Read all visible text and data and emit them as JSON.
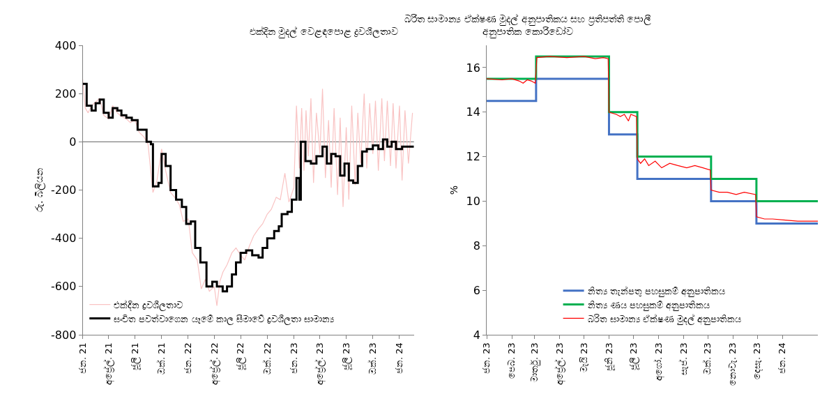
{
  "chart_data": [
    {
      "type": "line",
      "title": "එක්දින මුදල් වෙළඳපොළ ද්‍රවශීලතාව",
      "ylabel": "රු. බිලියන",
      "xlim": [
        "2021-01-01",
        "2024-02-20"
      ],
      "xticks": [
        {
          "value": "2021-01-01",
          "label": "ජන. 21"
        },
        {
          "value": "2021-04-01",
          "label": "අප්‍රේල්. 21"
        },
        {
          "value": "2021-07-01",
          "label": "ජූලි 21"
        },
        {
          "value": "2021-10-01",
          "label": "ඔක්. 21"
        },
        {
          "value": "2022-01-01",
          "label": "ජන. 22"
        },
        {
          "value": "2022-04-01",
          "label": "අප්‍රේල්. 22"
        },
        {
          "value": "2022-07-01",
          "label": "ජූලි 22"
        },
        {
          "value": "2022-10-01",
          "label": "ඔක්. 22"
        },
        {
          "value": "2023-01-01",
          "label": "ජන. 23"
        },
        {
          "value": "2023-04-01",
          "label": "අප්‍රේල්. 23"
        },
        {
          "value": "2023-07-01",
          "label": "ජූලි 23"
        },
        {
          "value": "2023-10-01",
          "label": "ඔක්. 23"
        },
        {
          "value": "2024-01-01",
          "label": "ජන. 24"
        }
      ],
      "ylim": [
        -800,
        400
      ],
      "yticks": [
        -800,
        -600,
        -400,
        -200,
        0,
        200,
        400
      ],
      "grid": false,
      "legend": "bottom left",
      "ref_lines": [
        {
          "axis": "y",
          "value": 0,
          "label": null,
          "color": "#808080"
        }
      ],
      "series": [
        {
          "name": "එක්දින ද්‍රවශීලතාව",
          "color": "#f9c3c3",
          "x": [
            "2021-01-01",
            "2021-01-10",
            "2021-01-20",
            "2021-02-01",
            "2021-02-15",
            "2021-03-01",
            "2021-03-15",
            "2021-04-01",
            "2021-04-15",
            "2021-05-01",
            "2021-05-15",
            "2021-06-01",
            "2021-06-15",
            "2021-07-01",
            "2021-07-15",
            "2021-08-01",
            "2021-08-15",
            "2021-09-01",
            "2021-09-15",
            "2021-10-01",
            "2021-10-15",
            "2021-11-01",
            "2021-11-15",
            "2021-12-01",
            "2021-12-15",
            "2022-01-01",
            "2022-01-15",
            "2022-02-01",
            "2022-02-15",
            "2022-03-01",
            "2022-03-15",
            "2022-04-01",
            "2022-04-10",
            "2022-04-20",
            "2022-05-01",
            "2022-05-15",
            "2022-06-01",
            "2022-06-15",
            "2022-07-01",
            "2022-07-15",
            "2022-08-01",
            "2022-08-15",
            "2022-09-01",
            "2022-09-15",
            "2022-10-01",
            "2022-10-15",
            "2022-11-01",
            "2022-11-15",
            "2022-12-01",
            "2022-12-15",
            "2023-01-01",
            "2023-01-10",
            "2023-01-20",
            "2023-01-28",
            "2023-02-05",
            "2023-02-12",
            "2023-02-20",
            "2023-03-01",
            "2023-03-10",
            "2023-03-20",
            "2023-04-01",
            "2023-04-10",
            "2023-04-20",
            "2023-05-01",
            "2023-05-10",
            "2023-05-20",
            "2023-06-01",
            "2023-06-10",
            "2023-06-20",
            "2023-07-01",
            "2023-07-10",
            "2023-07-20",
            "2023-08-01",
            "2023-08-10",
            "2023-08-20",
            "2023-09-01",
            "2023-09-10",
            "2023-09-20",
            "2023-10-01",
            "2023-10-10",
            "2023-10-20",
            "2023-11-01",
            "2023-11-10",
            "2023-11-20",
            "2023-12-01",
            "2023-12-10",
            "2023-12-20",
            "2024-01-01",
            "2024-01-10",
            "2024-01-20",
            "2024-02-01",
            "2024-02-15"
          ],
          "values": [
            260,
            140,
            120,
            150,
            165,
            180,
            110,
            95,
            150,
            120,
            105,
            95,
            80,
            90,
            40,
            20,
            -10,
            -210,
            -160,
            -30,
            -120,
            -210,
            -230,
            -260,
            -330,
            -320,
            -460,
            -490,
            -610,
            -570,
            -620,
            -600,
            -680,
            -580,
            -540,
            -510,
            -460,
            -440,
            -470,
            -490,
            -430,
            -390,
            -360,
            -340,
            -300,
            -280,
            -230,
            -240,
            -130,
            -250,
            -190,
            150,
            -110,
            140,
            -120,
            130,
            -60,
            180,
            -170,
            120,
            -50,
            220,
            -150,
            90,
            -190,
            140,
            -220,
            100,
            -270,
            60,
            -240,
            150,
            -180,
            120,
            -90,
            200,
            -110,
            160,
            -50,
            170,
            -120,
            180,
            -80,
            170,
            -100,
            160,
            -110,
            150,
            -160,
            130,
            -90,
            120
          ]
        },
        {
          "name": "සංචිත පවත්වාගෙන යෑමේ කාල සීමාවේ ද්‍රවශීලතා සාමාන්‍ය",
          "color": "#000000",
          "type": "step",
          "x": [
            "2021-01-01",
            "2021-01-15",
            "2021-02-01",
            "2021-02-15",
            "2021-03-01",
            "2021-03-15",
            "2021-04-01",
            "2021-04-15",
            "2021-05-01",
            "2021-05-15",
            "2021-06-01",
            "2021-06-20",
            "2021-07-10",
            "2021-08-10",
            "2021-08-25",
            "2021-09-01",
            "2021-09-20",
            "2021-10-01",
            "2021-10-15",
            "2021-11-01",
            "2021-11-20",
            "2021-12-10",
            "2021-12-25",
            "2022-01-10",
            "2022-01-25",
            "2022-02-12",
            "2022-03-05",
            "2022-03-25",
            "2022-04-10",
            "2022-04-30",
            "2022-05-15",
            "2022-06-01",
            "2022-06-15",
            "2022-07-01",
            "2022-07-20",
            "2022-08-10",
            "2022-09-01",
            "2022-09-15",
            "2022-10-01",
            "2022-10-25",
            "2022-11-10",
            "2022-11-20",
            "2022-12-10",
            "2022-12-25",
            "2023-01-10",
            "2023-01-20",
            "2023-01-25",
            "2023-02-10",
            "2023-03-01",
            "2023-03-20",
            "2023-04-10",
            "2023-04-25",
            "2023-05-10",
            "2023-05-25",
            "2023-06-10",
            "2023-06-25",
            "2023-07-10",
            "2023-07-25",
            "2023-08-10",
            "2023-08-25",
            "2023-09-10",
            "2023-10-01",
            "2023-10-20",
            "2023-11-05",
            "2023-11-20",
            "2023-12-05",
            "2023-12-20",
            "2024-01-10",
            "2024-02-20"
          ],
          "values": [
            240,
            150,
            130,
            160,
            175,
            120,
            100,
            140,
            130,
            110,
            100,
            90,
            50,
            0,
            -10,
            -185,
            -170,
            -50,
            -100,
            -200,
            -240,
            -270,
            -340,
            -330,
            -440,
            -500,
            -600,
            -580,
            -600,
            -620,
            -600,
            -550,
            -500,
            -460,
            -450,
            -470,
            -480,
            -440,
            -400,
            -370,
            -350,
            -300,
            -290,
            -240,
            -150,
            -240,
            0,
            -80,
            -90,
            -60,
            -20,
            -90,
            -50,
            -60,
            -140,
            -90,
            -160,
            -170,
            -100,
            -40,
            -30,
            -15,
            -30,
            10,
            -20,
            0,
            -30,
            -20,
            -20
          ]
        }
      ]
    },
    {
      "type": "step",
      "title": "බරිත සාමාන්‍ය ඒක්ෂණ මුදල් අනුපාතිකය සහ ප්‍රතිපත්ති පොලී අනුපාතික කොරිඩෝව",
      "ylabel": "%",
      "xlim": [
        "2023-01-01",
        "2024-02-14"
      ],
      "xticks": [
        {
          "value": "2023-01-01",
          "label": "ජන. 23"
        },
        {
          "value": "2023-02-01",
          "label": "පෙබ. 23"
        },
        {
          "value": "2023-03-01",
          "label": "මාර්තු. 23"
        },
        {
          "value": "2023-04-01",
          "label": "අප්‍රේල්. 23"
        },
        {
          "value": "2023-05-01",
          "label": "මැයි 23"
        },
        {
          "value": "2023-06-01",
          "label": "ජූනි 23"
        },
        {
          "value": "2023-07-01",
          "label": "ජූලි 23"
        },
        {
          "value": "2023-08-01",
          "label": "අගෝ. 23"
        },
        {
          "value": "2023-09-01",
          "label": "සැප්. 23"
        },
        {
          "value": "2023-10-01",
          "label": "ඔක්. 23"
        },
        {
          "value": "2023-11-01",
          "label": "නොවැ. 23"
        },
        {
          "value": "2023-12-01",
          "label": "දෙසැ. 23"
        },
        {
          "value": "2024-01-01",
          "label": "ජන. 24"
        }
      ],
      "ylim": [
        4,
        17
      ],
      "yticks": [
        4,
        6,
        8,
        10,
        12,
        14,
        16
      ],
      "grid": false,
      "legend": "bottom",
      "series": [
        {
          "name": "නිත්‍ය තැන්පතු පහසුකම් අනුපාතිකය",
          "color": "#4472c4",
          "x": [
            "2023-01-01",
            "2023-03-03",
            "2023-06-01",
            "2023-07-06",
            "2023-10-05",
            "2023-11-30",
            "2024-02-14"
          ],
          "values": [
            14.5,
            15.5,
            13,
            11,
            10,
            9,
            9
          ]
        },
        {
          "name": "නිත්‍ය ණය පහසුකම් අනුපාතිකය",
          "color": "#00b050",
          "x": [
            "2023-01-01",
            "2023-03-03",
            "2023-06-01",
            "2023-07-06",
            "2023-10-05",
            "2023-11-30",
            "2024-02-14"
          ],
          "values": [
            15.5,
            16.5,
            14,
            12,
            11,
            10,
            10
          ]
        },
        {
          "name": "බරිත සාමාන්‍ය ඒක්ෂණ මුදල් අනුපාතිකය",
          "color": "#ff0000",
          "type": "line",
          "x": [
            "2023-01-01",
            "2023-01-20",
            "2023-02-01",
            "2023-02-10",
            "2023-02-15",
            "2023-02-20",
            "2023-02-25",
            "2023-03-02",
            "2023-03-04",
            "2023-03-20",
            "2023-04-10",
            "2023-05-01",
            "2023-05-15",
            "2023-05-25",
            "2023-05-31",
            "2023-06-01",
            "2023-06-10",
            "2023-06-15",
            "2023-06-20",
            "2023-06-25",
            "2023-06-28",
            "2023-07-05",
            "2023-07-06",
            "2023-07-10",
            "2023-07-15",
            "2023-07-20",
            "2023-07-28",
            "2023-08-05",
            "2023-08-15",
            "2023-08-25",
            "2023-09-05",
            "2023-09-15",
            "2023-09-25",
            "2023-10-04",
            "2023-10-05",
            "2023-10-15",
            "2023-10-25",
            "2023-11-05",
            "2023-11-15",
            "2023-11-29",
            "2023-11-30",
            "2023-12-10",
            "2023-12-20",
            "2024-01-05",
            "2024-01-20",
            "2024-02-14"
          ],
          "values": [
            15.5,
            15.45,
            15.5,
            15.4,
            15.3,
            15.45,
            15.4,
            15.3,
            16.45,
            16.5,
            16.45,
            16.5,
            16.4,
            16.45,
            16.4,
            14.0,
            13.9,
            13.8,
            13.9,
            13.6,
            13.9,
            13.8,
            11.9,
            11.7,
            11.9,
            11.6,
            11.8,
            11.5,
            11.7,
            11.6,
            11.5,
            11.6,
            11.5,
            11.4,
            10.5,
            10.4,
            10.4,
            10.3,
            10.4,
            10.3,
            9.3,
            9.2,
            9.2,
            9.15,
            9.1,
            9.1
          ]
        }
      ]
    }
  ]
}
